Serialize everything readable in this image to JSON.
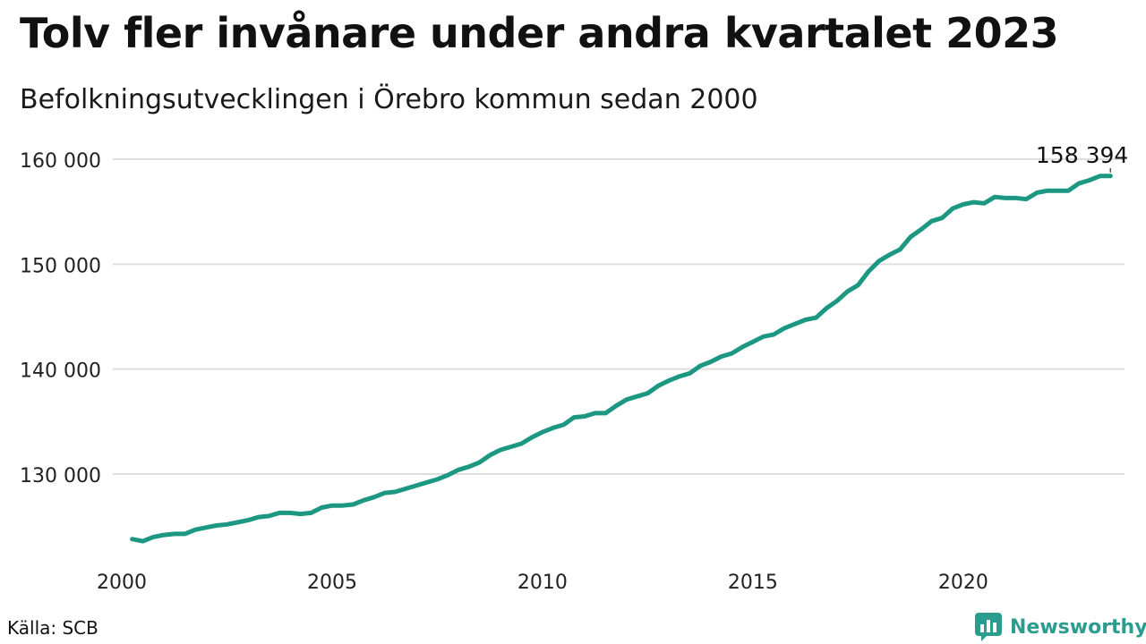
{
  "title": "Tolv fler invånare under andra kvartalet 2023",
  "subtitle": "Befolkningsutvecklingen i Örebro kommun sedan 2000",
  "source": "Källa: SCB",
  "brand": {
    "name": "Newsworthy",
    "color": "#2a9d8f",
    "icon": "newsworthy-logo-icon"
  },
  "chart_data": {
    "type": "line",
    "title": "Tolv fler invånare under andra kvartalet 2023",
    "subtitle": "Befolkningsutvecklingen i Örebro kommun sedan 2000",
    "xlabel": "",
    "ylabel": "",
    "x_ticks": [
      "2000",
      "2005",
      "2010",
      "2015",
      "2020"
    ],
    "y_ticks": [
      "130 000",
      "140 000",
      "150 000",
      "160 000"
    ],
    "ylim": [
      122000,
      161000
    ],
    "xlim": [
      2000.0,
      2023.6
    ],
    "grid": true,
    "line_color": "#1b9782",
    "end_label": "158 394",
    "series": [
      {
        "x": [
          2000.25,
          2000.5,
          2000.75,
          2001.0,
          2001.25,
          2001.5,
          2001.75,
          2002.0,
          2002.25,
          2002.5,
          2002.75,
          2003.0,
          2003.25,
          2003.5,
          2003.75,
          2004.0,
          2004.25,
          2004.5,
          2004.75,
          2005.0,
          2005.25,
          2005.5,
          2005.75,
          2006.0,
          2006.25,
          2006.5,
          2006.75,
          2007.0,
          2007.25,
          2007.5,
          2007.75,
          2008.0,
          2008.25,
          2008.5,
          2008.75,
          2009.0,
          2009.25,
          2009.5,
          2009.75,
          2010.0,
          2010.25,
          2010.5,
          2010.75,
          2011.0,
          2011.25,
          2011.5,
          2011.75,
          2012.0,
          2012.25,
          2012.5,
          2012.75,
          2013.0,
          2013.25,
          2013.5,
          2013.75,
          2014.0,
          2014.25,
          2014.5,
          2014.75,
          2015.0,
          2015.25,
          2015.5,
          2015.75,
          2016.0,
          2016.25,
          2016.5,
          2016.75,
          2017.0,
          2017.25,
          2017.5,
          2017.75,
          2018.0,
          2018.25,
          2018.5,
          2018.75,
          2019.0,
          2019.25,
          2019.5,
          2019.75,
          2020.0,
          2020.25,
          2020.5,
          2020.75,
          2021.0,
          2021.25,
          2021.5,
          2021.75,
          2022.0,
          2022.25,
          2022.5,
          2022.75,
          2023.0,
          2023.25,
          2023.5
        ],
        "values": [
          123800,
          123600,
          124000,
          124200,
          124300,
          124300,
          124700,
          124900,
          125100,
          125200,
          125400,
          125600,
          125900,
          126000,
          126300,
          126300,
          126200,
          126300,
          126800,
          127000,
          127000,
          127100,
          127500,
          127800,
          128200,
          128300,
          128600,
          128900,
          129200,
          129500,
          129900,
          130400,
          130700,
          131100,
          131800,
          132300,
          132600,
          132900,
          133500,
          134000,
          134400,
          134700,
          135400,
          135500,
          135800,
          135800,
          136500,
          137100,
          137400,
          137700,
          138400,
          138900,
          139300,
          139600,
          140300,
          140700,
          141200,
          141500,
          142100,
          142600,
          143100,
          143300,
          143900,
          144300,
          144700,
          144900,
          145800,
          146500,
          147400,
          148000,
          149300,
          150300,
          150900,
          151400,
          152600,
          153300,
          154100,
          154400,
          155300,
          155700,
          155900,
          155800,
          156400,
          156300,
          156300,
          156200,
          156800,
          157000,
          157000,
          157000,
          157700,
          158000,
          158394,
          158394
        ]
      }
    ]
  }
}
